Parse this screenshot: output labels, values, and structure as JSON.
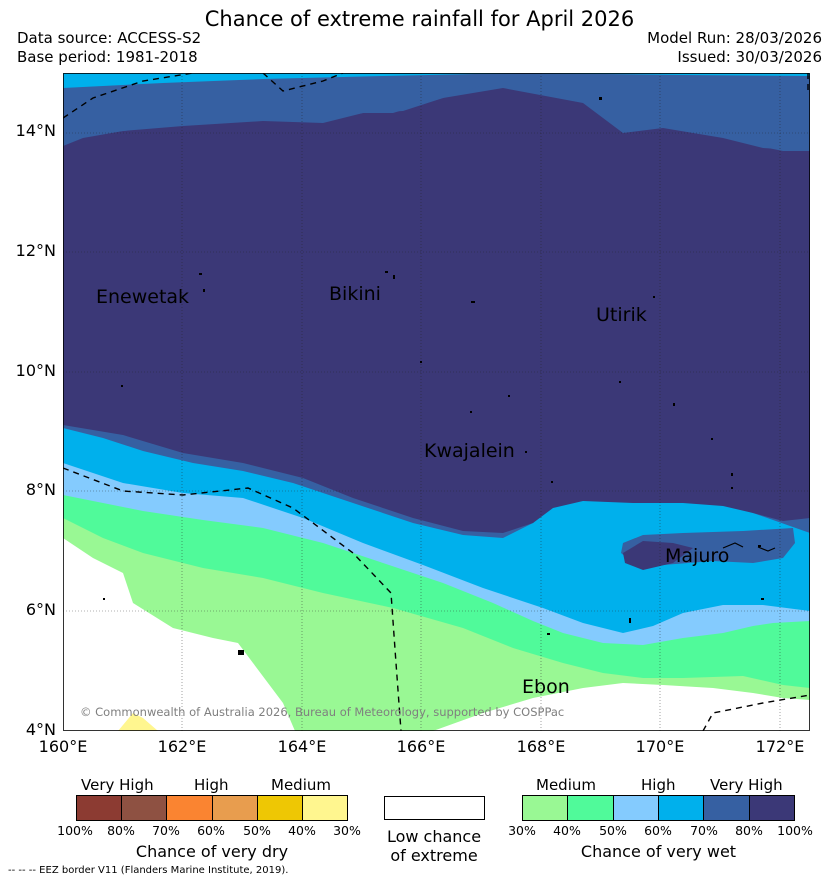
{
  "header": {
    "title": "Chance of extreme rainfall for April 2026",
    "data_source": "Data source: ACCESS-S2",
    "base_period": "Base period: 1981-2018",
    "model_run": "Model Run: 28/03/2026",
    "issued": "Issued: 30/03/2026"
  },
  "map": {
    "lat_ticks": [
      "14°N",
      "12°N",
      "10°N",
      "8°N",
      "6°N",
      "4°N"
    ],
    "lon_ticks": [
      "160°E",
      "162°E",
      "164°E",
      "166°E",
      "168°E",
      "170°E",
      "172°E"
    ],
    "places": {
      "enewetak": "Enewetak",
      "bikini": "Bikini",
      "utirik": "Utirik",
      "kwajalein": "Kwajalein",
      "majuro": "Majuro",
      "ebon": "Ebon"
    },
    "copyright": "© Commonwealth of Australia 2026, Bureau of Meteorology, supported by COSPPac"
  },
  "legend": {
    "dry": {
      "categories": [
        "Very High",
        "High",
        "Medium"
      ],
      "percent_labels": [
        "100%",
        "80%",
        "70%",
        "60%",
        "50%",
        "40%",
        "30%"
      ],
      "colors": [
        "#8c3b32",
        "#8e5142",
        "#fa8431",
        "#e89d4e",
        "#eec704",
        "#fff68f"
      ],
      "title": "Chance of very dry"
    },
    "low": {
      "line1": "Low chance",
      "line2": "of extreme"
    },
    "wet": {
      "categories": [
        "Medium",
        "High",
        "Very High"
      ],
      "percent_labels": [
        "30%",
        "40%",
        "50%",
        "60%",
        "70%",
        "80%",
        "100%"
      ],
      "colors": [
        "#99f894",
        "#50fa9a",
        "#84cbfe",
        "#00b0ec",
        "#3660a2",
        "#3b3877"
      ],
      "title": "Chance of very wet"
    }
  },
  "footnote": "--  --  -- EEZ border V11 (Flanders Marine Institute, 2019)."
}
